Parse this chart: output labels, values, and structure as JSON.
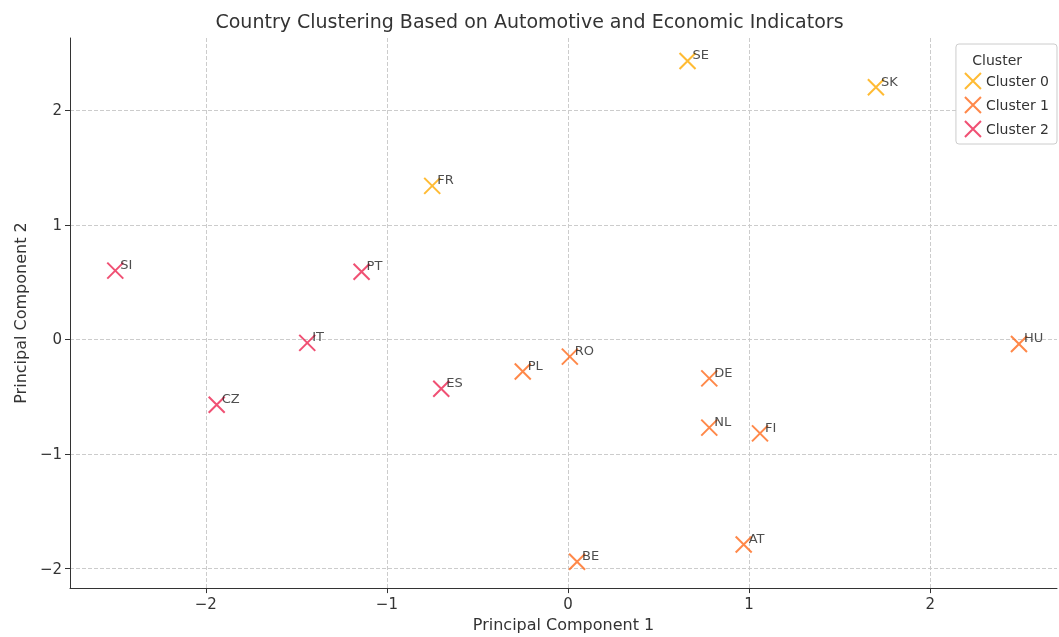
{
  "chart_data": {
    "type": "scatter",
    "title": "Country Clustering Based on Automotive and Economic Indicators",
    "xlabel": "Principal Component 1",
    "ylabel": "Principal Component 2",
    "legend_title": "Cluster",
    "legend": "top right",
    "grid": true,
    "marker": "cross",
    "xlim": [
      -2.75,
      2.7
    ],
    "ylim": [
      -2.17,
      2.63
    ],
    "xticks": [
      {
        "value": -2,
        "label": "−2"
      },
      {
        "value": -1,
        "label": "−1"
      },
      0,
      1,
      2
    ],
    "yticks": [
      {
        "value": -2,
        "label": "−2"
      },
      {
        "value": -1,
        "label": "−1"
      },
      0,
      1,
      2
    ],
    "series": [
      {
        "name": "Cluster 0",
        "color": "#ffaa00",
        "x": [
          0.66,
          1.7,
          -0.75
        ],
        "values": [
          2.43,
          2.2,
          1.34
        ]
      },
      {
        "name": "Cluster 1",
        "color": "#ff6a1c",
        "x": [
          -0.25,
          0.01,
          0.78,
          0.78,
          1.06,
          2.49,
          0.97,
          0.05
        ],
        "values": [
          -0.28,
          -0.15,
          -0.34,
          -0.77,
          -0.82,
          -0.04,
          -1.79,
          -1.94
        ]
      },
      {
        "name": "Cluster 2",
        "color": "#ec2450",
        "x": [
          -2.5,
          -1.14,
          -1.44,
          -1.94,
          -0.7
        ],
        "values": [
          0.6,
          0.59,
          -0.03,
          -0.57,
          -0.43
        ]
      }
    ],
    "annotations": [
      {
        "text": "SE",
        "x": 0.66,
        "y": 2.43
      },
      {
        "text": "SK",
        "x": 1.7,
        "y": 2.2
      },
      {
        "text": "FR",
        "x": -0.75,
        "y": 1.34
      },
      {
        "text": "SI",
        "x": -2.5,
        "y": 0.6
      },
      {
        "text": "PT",
        "x": -1.14,
        "y": 0.59
      },
      {
        "text": "IT",
        "x": -1.44,
        "y": -0.03
      },
      {
        "text": "CZ",
        "x": -1.94,
        "y": -0.57
      },
      {
        "text": "ES",
        "x": -0.7,
        "y": -0.43
      },
      {
        "text": "PL",
        "x": -0.25,
        "y": -0.28
      },
      {
        "text": "RO",
        "x": 0.01,
        "y": -0.15
      },
      {
        "text": "DE",
        "x": 0.78,
        "y": -0.34
      },
      {
        "text": "NL",
        "x": 0.78,
        "y": -0.77
      },
      {
        "text": "FI",
        "x": 1.06,
        "y": -0.82
      },
      {
        "text": "HU",
        "x": 2.49,
        "y": -0.04
      },
      {
        "text": "AT",
        "x": 0.97,
        "y": -1.79
      },
      {
        "text": "BE",
        "x": 0.05,
        "y": -1.94
      }
    ]
  }
}
